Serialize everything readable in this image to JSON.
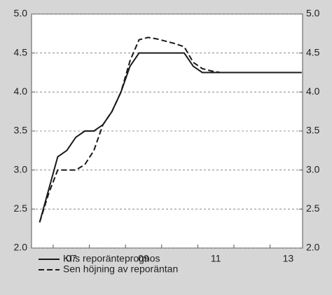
{
  "chart_data": {
    "type": "line",
    "x": [
      2006.625,
      2006.875,
      2007.125,
      2007.375,
      2007.625,
      2007.875,
      2008.125,
      2008.375,
      2008.625,
      2008.875,
      2009.125,
      2009.375,
      2009.625,
      2009.875,
      2010.125,
      2010.375,
      2010.625,
      2010.875,
      2011.125,
      2011.375,
      2011.625,
      2011.875,
      2012.125,
      2012.375,
      2012.625,
      2012.875,
      2013.125,
      2013.375,
      2013.625,
      2013.875
    ],
    "series": [
      {
        "name": "KI:s reporänteprognos",
        "color": "#1a1a1a",
        "style": "solid",
        "values": [
          2.33,
          2.75,
          3.17,
          3.25,
          3.42,
          3.5,
          3.5,
          3.58,
          3.75,
          4.0,
          4.33,
          4.5,
          4.5,
          4.5,
          4.5,
          4.5,
          4.5,
          4.33,
          4.25,
          4.25,
          4.25,
          4.25,
          4.25,
          4.25,
          4.25,
          4.25,
          4.25,
          4.25,
          4.25,
          4.25
        ]
      },
      {
        "name": "Sen höjning av reporäntan",
        "color": "#1a1a1a",
        "style": "dashed",
        "values": [
          2.33,
          2.7,
          3.0,
          3.0,
          3.0,
          3.07,
          3.25,
          3.58,
          3.75,
          4.0,
          4.4,
          4.67,
          4.7,
          4.68,
          4.65,
          4.62,
          4.58,
          4.38,
          4.3,
          4.27,
          4.25,
          4.25,
          4.25,
          4.25,
          4.25,
          4.25,
          4.25,
          4.25,
          4.25,
          4.25
        ]
      }
    ],
    "xlim": [
      2006.4,
      2013.9
    ],
    "xticks": [
      {
        "value": 2007.5,
        "label": "07"
      },
      {
        "value": 2009.5,
        "label": "09"
      },
      {
        "value": 2011.5,
        "label": "11"
      },
      {
        "value": 2013.5,
        "label": "13"
      }
    ],
    "xtick_marks": [
      2007,
      2008,
      2009,
      2010,
      2011,
      2012,
      2013
    ],
    "ylim": [
      2,
      5
    ],
    "yticks": [
      {
        "value": 2,
        "label": "2.0"
      },
      {
        "value": 2.5,
        "label": "2.5"
      },
      {
        "value": 3,
        "label": "3.0"
      },
      {
        "value": 3.5,
        "label": "3.5"
      },
      {
        "value": 4,
        "label": "4.0"
      },
      {
        "value": 4.5,
        "label": "4.5"
      },
      {
        "value": 5,
        "label": "5.0"
      }
    ],
    "y2lim": [
      2,
      5
    ],
    "y2ticks": [
      {
        "value": 2,
        "label": "2.0"
      },
      {
        "value": 2.5,
        "label": "2.5"
      },
      {
        "value": 3,
        "label": "3.0"
      },
      {
        "value": 3.5,
        "label": "3.5"
      },
      {
        "value": 4,
        "label": "4.0"
      },
      {
        "value": 4.5,
        "label": "4.5"
      },
      {
        "value": 5,
        "label": "5.0"
      }
    ],
    "grid": true
  }
}
